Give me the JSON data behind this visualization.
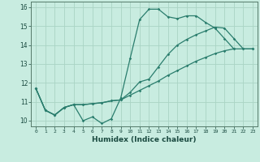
{
  "line1_y": [
    11.7,
    10.55,
    10.3,
    10.7,
    10.85,
    10.0,
    10.2,
    9.85,
    10.1,
    11.2,
    13.3,
    15.35,
    15.9,
    15.9,
    15.5,
    15.4,
    15.55,
    15.55,
    15.2,
    14.9,
    14.35,
    13.8,
    null,
    null
  ],
  "line2_y": [
    11.7,
    10.55,
    10.3,
    10.7,
    10.85,
    10.85,
    10.9,
    10.95,
    11.05,
    11.1,
    11.5,
    12.05,
    12.2,
    12.85,
    13.5,
    14.0,
    14.3,
    14.55,
    14.75,
    14.95,
    14.9,
    14.35,
    13.8,
    13.8
  ],
  "line3_y": [
    11.7,
    10.55,
    10.3,
    10.7,
    10.85,
    10.85,
    10.9,
    10.95,
    11.05,
    11.1,
    11.35,
    11.6,
    11.85,
    12.1,
    12.4,
    12.65,
    12.9,
    13.15,
    13.35,
    13.55,
    13.7,
    13.8,
    13.8,
    13.8
  ],
  "line_color": "#2a7d6d",
  "bg_color": "#c8ece0",
  "grid_color": "#aad4c4",
  "xlabel": "Humidex (Indice chaleur)",
  "ylim": [
    9.7,
    16.3
  ],
  "xlim": [
    -0.5,
    23.5
  ],
  "yticks": [
    10,
    11,
    12,
    13,
    14,
    15,
    16
  ],
  "xticks": [
    0,
    1,
    2,
    3,
    4,
    5,
    6,
    7,
    8,
    9,
    10,
    11,
    12,
    13,
    14,
    15,
    16,
    17,
    18,
    19,
    20,
    21,
    22,
    23
  ],
  "markersize": 1.8,
  "linewidth": 0.9
}
